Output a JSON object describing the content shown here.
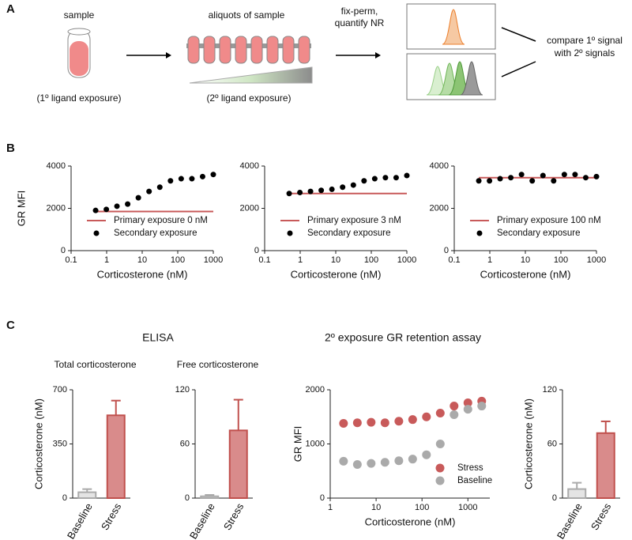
{
  "figure": {
    "panels": [
      "A",
      "B",
      "C"
    ],
    "diagram": {
      "sample": "sample",
      "primary": "(1º ligand exposure)",
      "aliquots": "aliquots of sample",
      "secondary": "(2º ligand exposure)",
      "step": [
        "fix-perm,",
        "quantify NR"
      ],
      "compare": [
        "compare 1º signal",
        "with 2º signals"
      ]
    },
    "headings": [
      "ELISA",
      "2º exposure GR retention assay"
    ]
  },
  "chart_data": [
    {
      "type": "scatter",
      "xscale": "log",
      "x": [
        0.49,
        0.98,
        1.95,
        3.9,
        7.8,
        15.6,
        31.3,
        62.5,
        125,
        250,
        500,
        1000
      ],
      "xlim": [
        0.1,
        1000
      ],
      "xticks": [
        0.1,
        1,
        10,
        100,
        1000
      ],
      "ylim": [
        0,
        4000
      ],
      "yticks": [
        0,
        2000,
        4000
      ],
      "xlabel": "Corticosterone (nM)",
      "ylabel": "GR MFI",
      "legend": "lower right",
      "series": [
        {
          "name": "Primary exposure 0 nM",
          "color": "#c85a5a",
          "style": "line",
          "values": [
            1850,
            1850,
            1850,
            1850,
            1850,
            1850,
            1850,
            1850,
            1850,
            1850,
            1850,
            1850
          ]
        },
        {
          "name": "Secondary exposure",
          "color": "#000000",
          "style": "marker",
          "values": [
            1900,
            1950,
            2100,
            2200,
            2500,
            2800,
            3000,
            3300,
            3400,
            3400,
            3500,
            3600
          ]
        }
      ]
    },
    {
      "type": "scatter",
      "xscale": "log",
      "x": [
        0.49,
        0.98,
        1.95,
        3.9,
        7.8,
        15.6,
        31.3,
        62.5,
        125,
        250,
        500,
        1000
      ],
      "xlim": [
        0.1,
        1000
      ],
      "xticks": [
        0.1,
        1,
        10,
        100,
        1000
      ],
      "ylim": [
        0,
        4000
      ],
      "yticks": [
        0,
        2000,
        4000
      ],
      "xlabel": "Corticosterone (nM)",
      "legend": "lower right",
      "series": [
        {
          "name": "Primary exposure 3 nM",
          "color": "#c85a5a",
          "style": "line",
          "values": [
            2700,
            2700,
            2700,
            2700,
            2700,
            2700,
            2700,
            2700,
            2700,
            2700,
            2700,
            2700
          ]
        },
        {
          "name": "Secondary exposure",
          "color": "#000000",
          "style": "marker",
          "values": [
            2700,
            2750,
            2800,
            2850,
            2900,
            3000,
            3100,
            3300,
            3400,
            3450,
            3450,
            3550
          ]
        }
      ]
    },
    {
      "type": "scatter",
      "xscale": "log",
      "x": [
        0.49,
        0.98,
        1.95,
        3.9,
        7.8,
        15.6,
        31.3,
        62.5,
        125,
        250,
        500,
        1000
      ],
      "xlim": [
        0.1,
        1000
      ],
      "xticks": [
        0.1,
        1,
        10,
        100,
        1000
      ],
      "ylim": [
        0,
        4000
      ],
      "yticks": [
        0,
        2000,
        4000
      ],
      "xlabel": "Corticosterone (nM)",
      "legend": "lower right",
      "series": [
        {
          "name": "Primary exposure 100 nM",
          "color": "#c85a5a",
          "style": "line",
          "values": [
            3450,
            3450,
            3450,
            3450,
            3450,
            3450,
            3450,
            3450,
            3450,
            3450,
            3450,
            3450
          ]
        },
        {
          "name": "Secondary exposure",
          "color": "#000000",
          "style": "marker",
          "values": [
            3300,
            3300,
            3400,
            3450,
            3600,
            3300,
            3550,
            3300,
            3600,
            3600,
            3450,
            3500
          ]
        }
      ]
    },
    {
      "type": "bar",
      "title": "Total corticosterone",
      "categories": [
        "Baseline",
        "Stress"
      ],
      "values": [
        38,
        535
      ],
      "errors": [
        20,
        95
      ],
      "colors": [
        "#e4e4e4",
        "#d98b8b"
      ],
      "edgecolors": [
        "#aaaaaa",
        "#c0504d"
      ],
      "ylim": [
        0,
        700
      ],
      "yticks": [
        0,
        350,
        700
      ],
      "ylabel": "Corticosterone (nM)"
    },
    {
      "type": "bar",
      "title": "Free corticosterone",
      "categories": [
        "Baseline",
        "Stress"
      ],
      "values": [
        2,
        75
      ],
      "errors": [
        1.5,
        34
      ],
      "colors": [
        "#e4e4e4",
        "#d98b8b"
      ],
      "edgecolors": [
        "#aaaaaa",
        "#c0504d"
      ],
      "ylim": [
        0,
        120
      ],
      "yticks": [
        0,
        60,
        120
      ]
    },
    {
      "type": "scatter",
      "xscale": "log",
      "x": [
        1.95,
        3.9,
        7.8,
        15.6,
        31.3,
        62.5,
        125,
        250,
        500,
        1000,
        2000
      ],
      "xlim": [
        1,
        3000
      ],
      "xticks": [
        1,
        10,
        100,
        1000
      ],
      "ylim": [
        0,
        2000
      ],
      "yticks": [
        0,
        1000,
        2000
      ],
      "xlabel": "Corticosterone (nM)",
      "ylabel": "GR MFI",
      "legend": "lower right",
      "series": [
        {
          "name": "Stress",
          "color": "#c85a5a",
          "style": "marker",
          "values": [
            1380,
            1390,
            1400,
            1390,
            1420,
            1450,
            1500,
            1570,
            1700,
            1760,
            1790
          ]
        },
        {
          "name": "Baseline",
          "color": "#aaaaaa",
          "style": "marker",
          "values": [
            680,
            620,
            640,
            660,
            690,
            720,
            800,
            1000,
            1540,
            1640,
            1700
          ]
        }
      ]
    },
    {
      "type": "bar",
      "categories": [
        "Baseline",
        "Stress"
      ],
      "values": [
        10,
        72
      ],
      "errors": [
        7,
        13
      ],
      "colors": [
        "#e4e4e4",
        "#d98b8b"
      ],
      "edgecolors": [
        "#aaaaaa",
        "#c0504d"
      ],
      "ylim": [
        0,
        120
      ],
      "yticks": [
        0,
        60,
        120
      ],
      "ylabel": "Corticosterone (nM)"
    }
  ]
}
